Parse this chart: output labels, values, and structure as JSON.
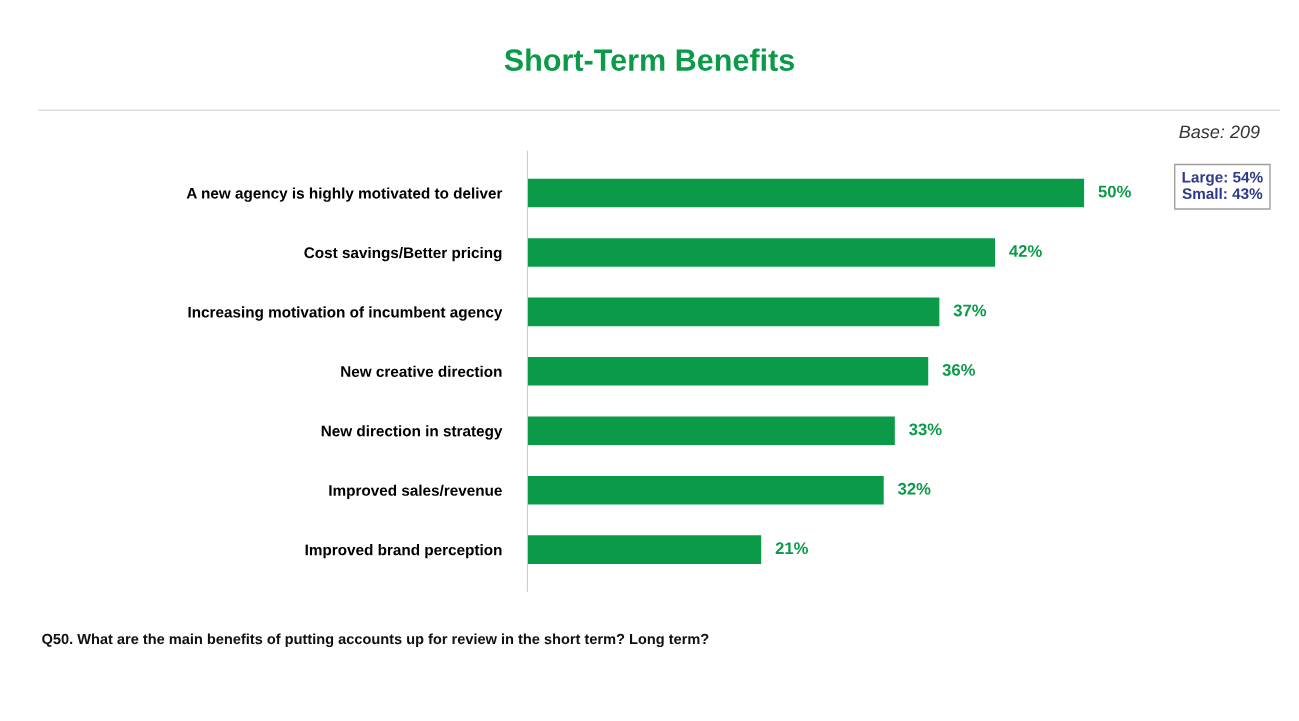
{
  "chart_data": {
    "type": "bar",
    "orientation": "horizontal",
    "title": "Short-Term Benefits",
    "categories": [
      "A new agency is highly motivated to deliver",
      "Cost savings/Better pricing",
      "Increasing motivation of incumbent agency",
      "New creative direction",
      "New direction in strategy",
      "Improved sales/revenue",
      "Improved brand perception"
    ],
    "values": [
      50,
      42,
      37,
      36,
      33,
      32,
      21
    ],
    "value_labels": [
      "50%",
      "42%",
      "37%",
      "36%",
      "33%",
      "32%",
      "21%"
    ],
    "color": "#0a9a48",
    "tick_labels": "y",
    "annotations": [
      "Base: 209",
      "Large: 54%\nSmall: 43%",
      "Q50. What are the main benefits of putting accounts up for review in the short term? Long term?"
    ]
  }
}
